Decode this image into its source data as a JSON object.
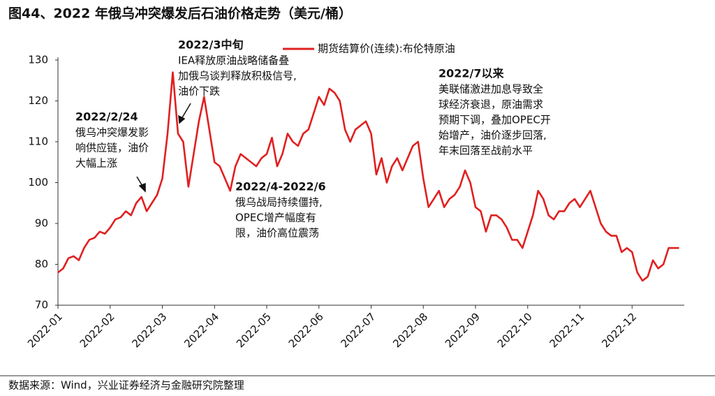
{
  "chart_data": {
    "type": "line",
    "title": "图44、2022 年俄乌冲突爆发后石油价格走势（美元/桶）",
    "source": "数据来源：Wind，兴业证券经济与金融研究院整理",
    "series": [
      {
        "name": "期货结算价(连续):布伦特原油",
        "color": "#e02020",
        "values": [
          78,
          79,
          81.5,
          82,
          81,
          84,
          86,
          86.5,
          88,
          87.5,
          89,
          91,
          91.5,
          93,
          92,
          95,
          96.5,
          93,
          95,
          97,
          101,
          112,
          127,
          112,
          110,
          99,
          107,
          115,
          121,
          113,
          105,
          104,
          101,
          98,
          104,
          107,
          106,
          105,
          104,
          106,
          107,
          111,
          104,
          107,
          112,
          110,
          109,
          112,
          113,
          117,
          121,
          119,
          123,
          122,
          120,
          113,
          110,
          113,
          114,
          115,
          112,
          102,
          106,
          100,
          104,
          106,
          103,
          106,
          109,
          110,
          101,
          94,
          96,
          98,
          94,
          96,
          97,
          99,
          103,
          100,
          94,
          93,
          88,
          92,
          92,
          91,
          89,
          86,
          86,
          84,
          88,
          92,
          98,
          96,
          92,
          91,
          93,
          93,
          95,
          96,
          94,
          96,
          98,
          94,
          90,
          88,
          87,
          87,
          83,
          84,
          83,
          78,
          76,
          77,
          81,
          79,
          80,
          84,
          84,
          84
        ]
      }
    ],
    "xlim": [
      0,
      120
    ],
    "xticks": [
      {
        "value": 0,
        "label": "2022-01"
      },
      {
        "value": 10,
        "label": "2022-02"
      },
      {
        "value": 20,
        "label": "2022-03"
      },
      {
        "value": 30,
        "label": "2022-04"
      },
      {
        "value": 40,
        "label": "2022-05"
      },
      {
        "value": 50,
        "label": "2022-06"
      },
      {
        "value": 60,
        "label": "2022-07"
      },
      {
        "value": 70,
        "label": "2022-08"
      },
      {
        "value": 80,
        "label": "2022-09"
      },
      {
        "value": 90,
        "label": "2022-10"
      },
      {
        "value": 100,
        "label": "2022-11"
      },
      {
        "value": 110,
        "label": "2022-12"
      }
    ],
    "ylim": [
      70,
      130
    ],
    "yticks": [
      70,
      80,
      90,
      100,
      110,
      120,
      130
    ],
    "annotations": [
      {
        "title": "2022/2/24",
        "lines": [
          "俄乌冲突爆发影",
          "响供应链，油价",
          "大幅上涨"
        ]
      },
      {
        "title": "2022/3中旬",
        "lines": [
          "IEA释放原油战略储备叠",
          "加俄乌谈判释放积极信号,",
          "油价下跌"
        ]
      },
      {
        "title": "2022/4-2022/6",
        "lines": [
          "俄乌战局持续僵持,",
          "OPEC增产幅度有",
          "限，油价高位震荡"
        ]
      },
      {
        "title": "2022/7以来",
        "lines": [
          "美联储激进加息导致全",
          "球经济衰退，原油需求",
          "预期下调，叠加OPEC开",
          "始增产，油价逐步回落,",
          "年末回落至战前水平"
        ]
      }
    ]
  }
}
